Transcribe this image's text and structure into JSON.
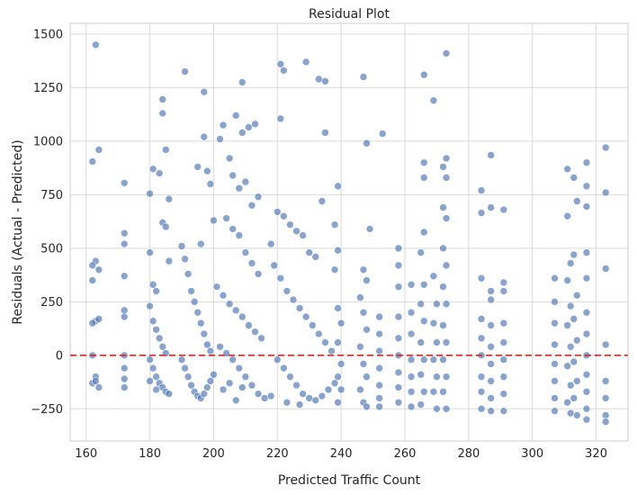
{
  "chart_data": {
    "type": "scatter",
    "title": "Residual Plot",
    "xlabel": "Predicted Traffic Count",
    "ylabel": "Residuals (Actual - Predicted)",
    "xlim": [
      155,
      330
    ],
    "ylim": [
      -400,
      1550
    ],
    "xticks": [
      "160",
      "180",
      "200",
      "220",
      "240",
      "260",
      "280",
      "300",
      "320"
    ],
    "yticks": [
      "−250",
      "0",
      "250",
      "500",
      "750",
      "1000",
      "1250",
      "1500"
    ],
    "xtick_values": [
      160,
      180,
      200,
      220,
      240,
      260,
      280,
      300,
      320
    ],
    "ytick_values": [
      -250,
      0,
      250,
      500,
      750,
      1000,
      1250,
      1500
    ],
    "grid": true,
    "reference_line": {
      "y": 0,
      "style": "dashed",
      "color": "#d62728"
    },
    "point_color": "#4c72b0",
    "series": [
      {
        "values": [
          [
            163,
            1450
          ],
          [
            162,
            905
          ],
          [
            164,
            960
          ],
          [
            163,
            440
          ],
          [
            162,
            420
          ],
          [
            164,
            400
          ],
          [
            162,
            350
          ],
          [
            163,
            160
          ],
          [
            162,
            150
          ],
          [
            164,
            170
          ],
          [
            162,
            0
          ],
          [
            163,
            -100
          ],
          [
            162,
            -130
          ],
          [
            164,
            -150
          ],
          [
            163,
            -120
          ],
          [
            172,
            805
          ],
          [
            172,
            570
          ],
          [
            172,
            520
          ],
          [
            172,
            370
          ],
          [
            172,
            210
          ],
          [
            172,
            180
          ],
          [
            172,
            0
          ],
          [
            172,
            -60
          ],
          [
            172,
            -110
          ],
          [
            172,
            -150
          ],
          [
            180,
            755
          ],
          [
            181,
            870
          ],
          [
            183,
            850
          ],
          [
            184,
            1130
          ],
          [
            184,
            1195
          ],
          [
            185,
            960
          ],
          [
            186,
            730
          ],
          [
            180,
            480
          ],
          [
            181,
            330
          ],
          [
            182,
            300
          ],
          [
            184,
            620
          ],
          [
            185,
            600
          ],
          [
            186,
            440
          ],
          [
            180,
            230
          ],
          [
            181,
            160
          ],
          [
            182,
            120
          ],
          [
            183,
            80
          ],
          [
            184,
            40
          ],
          [
            185,
            10
          ],
          [
            180,
            -20
          ],
          [
            181,
            -60
          ],
          [
            182,
            -100
          ],
          [
            183,
            -130
          ],
          [
            184,
            -150
          ],
          [
            185,
            -170
          ],
          [
            186,
            -180
          ],
          [
            180,
            -120
          ],
          [
            182,
            -160
          ],
          [
            191,
            1325
          ],
          [
            195,
            880
          ],
          [
            197,
            1230
          ],
          [
            197,
            1020
          ],
          [
            198,
            860
          ],
          [
            199,
            800
          ],
          [
            196,
            520
          ],
          [
            200,
            630
          ],
          [
            190,
            510
          ],
          [
            191,
            450
          ],
          [
            192,
            380
          ],
          [
            193,
            300
          ],
          [
            194,
            250
          ],
          [
            195,
            200
          ],
          [
            196,
            150
          ],
          [
            197,
            100
          ],
          [
            198,
            50
          ],
          [
            199,
            20
          ],
          [
            190,
            -20
          ],
          [
            191,
            -60
          ],
          [
            192,
            -100
          ],
          [
            193,
            -140
          ],
          [
            194,
            -170
          ],
          [
            195,
            -190
          ],
          [
            196,
            -200
          ],
          [
            197,
            -180
          ],
          [
            198,
            -150
          ],
          [
            199,
            -120
          ],
          [
            200,
            -90
          ],
          [
            202,
            1010
          ],
          [
            203,
            1075
          ],
          [
            205,
            920
          ],
          [
            206,
            840
          ],
          [
            207,
            1120
          ],
          [
            209,
            1275
          ],
          [
            209,
            1040
          ],
          [
            211,
            1065
          ],
          [
            213,
            1080
          ],
          [
            210,
            810
          ],
          [
            208,
            780
          ],
          [
            214,
            740
          ],
          [
            212,
            700
          ],
          [
            204,
            640
          ],
          [
            206,
            590
          ],
          [
            208,
            560
          ],
          [
            210,
            480
          ],
          [
            212,
            430
          ],
          [
            214,
            380
          ],
          [
            201,
            320
          ],
          [
            203,
            280
          ],
          [
            205,
            240
          ],
          [
            207,
            210
          ],
          [
            209,
            180
          ],
          [
            211,
            140
          ],
          [
            213,
            110
          ],
          [
            215,
            80
          ],
          [
            202,
            40
          ],
          [
            204,
            10
          ],
          [
            206,
            -20
          ],
          [
            208,
            -60
          ],
          [
            210,
            -100
          ],
          [
            212,
            -140
          ],
          [
            214,
            -180
          ],
          [
            216,
            -200
          ],
          [
            218,
            -190
          ],
          [
            203,
            -160
          ],
          [
            205,
            -130
          ],
          [
            207,
            -210
          ],
          [
            209,
            -150
          ],
          [
            221,
            1360
          ],
          [
            222,
            1330
          ],
          [
            221,
            1105
          ],
          [
            229,
            1370
          ],
          [
            233,
            1290
          ],
          [
            235,
            1280
          ],
          [
            235,
            1040
          ],
          [
            220,
            670
          ],
          [
            222,
            650
          ],
          [
            224,
            610
          ],
          [
            226,
            580
          ],
          [
            228,
            560
          ],
          [
            230,
            480
          ],
          [
            232,
            460
          ],
          [
            234,
            720
          ],
          [
            238,
            610
          ],
          [
            218,
            520
          ],
          [
            219,
            420
          ],
          [
            221,
            360
          ],
          [
            223,
            300
          ],
          [
            225,
            260
          ],
          [
            227,
            220
          ],
          [
            229,
            180
          ],
          [
            231,
            140
          ],
          [
            233,
            100
          ],
          [
            235,
            60
          ],
          [
            237,
            20
          ],
          [
            220,
            -20
          ],
          [
            222,
            -60
          ],
          [
            224,
            -100
          ],
          [
            226,
            -140
          ],
          [
            228,
            -180
          ],
          [
            230,
            -200
          ],
          [
            232,
            -210
          ],
          [
            234,
            -190
          ],
          [
            236,
            -160
          ],
          [
            238,
            -130
          ],
          [
            223,
            -220
          ],
          [
            227,
            -230
          ],
          [
            239,
            790
          ],
          [
            239,
            490
          ],
          [
            238,
            400
          ],
          [
            239,
            220
          ],
          [
            240,
            150
          ],
          [
            239,
            60
          ],
          [
            240,
            -40
          ],
          [
            239,
            -100
          ],
          [
            240,
            -160
          ],
          [
            239,
            -220
          ],
          [
            247,
            1300
          ],
          [
            248,
            990
          ],
          [
            253,
            1035
          ],
          [
            249,
            590
          ],
          [
            247,
            400
          ],
          [
            248,
            350
          ],
          [
            246,
            270
          ],
          [
            247,
            200
          ],
          [
            248,
            120
          ],
          [
            246,
            40
          ],
          [
            247,
            -40
          ],
          [
            248,
            -100
          ],
          [
            246,
            -160
          ],
          [
            247,
            -220
          ],
          [
            248,
            -240
          ],
          [
            252,
            180
          ],
          [
            252,
            100
          ],
          [
            252,
            20
          ],
          [
            252,
            -60
          ],
          [
            252,
            -140
          ],
          [
            252,
            -200
          ],
          [
            252,
            -240
          ],
          [
            258,
            500
          ],
          [
            258,
            420
          ],
          [
            258,
            320
          ],
          [
            258,
            180
          ],
          [
            258,
            80
          ],
          [
            258,
            0
          ],
          [
            258,
            -80
          ],
          [
            258,
            -150
          ],
          [
            258,
            -220
          ],
          [
            262,
            330
          ],
          [
            262,
            200
          ],
          [
            262,
            100
          ],
          [
            262,
            -20
          ],
          [
            262,
            -100
          ],
          [
            262,
            -170
          ],
          [
            262,
            -240
          ],
          [
            266,
            1310
          ],
          [
            266,
            900
          ],
          [
            266,
            830
          ],
          [
            266,
            575
          ],
          [
            265,
            480
          ],
          [
            266,
            330
          ],
          [
            265,
            240
          ],
          [
            266,
            160
          ],
          [
            265,
            60
          ],
          [
            266,
            -20
          ],
          [
            265,
            -90
          ],
          [
            266,
            -170
          ],
          [
            265,
            -230
          ],
          [
            269,
            1190
          ],
          [
            269,
            370
          ],
          [
            270,
            240
          ],
          [
            269,
            150
          ],
          [
            270,
            60
          ],
          [
            269,
            -20
          ],
          [
            270,
            -100
          ],
          [
            269,
            -170
          ],
          [
            270,
            -250
          ],
          [
            273,
            1410
          ],
          [
            273,
            920
          ],
          [
            272,
            880
          ],
          [
            273,
            830
          ],
          [
            272,
            690
          ],
          [
            273,
            640
          ],
          [
            272,
            500
          ],
          [
            273,
            420
          ],
          [
            272,
            320
          ],
          [
            273,
            240
          ],
          [
            272,
            140
          ],
          [
            273,
            60
          ],
          [
            272,
            -20
          ],
          [
            273,
            -100
          ],
          [
            272,
            -170
          ],
          [
            273,
            -250
          ],
          [
            284,
            770
          ],
          [
            284,
            665
          ],
          [
            284,
            360
          ],
          [
            284,
            170
          ],
          [
            284,
            80
          ],
          [
            284,
            0
          ],
          [
            284,
            -100
          ],
          [
            284,
            -170
          ],
          [
            284,
            -250
          ],
          [
            287,
            935
          ],
          [
            287,
            690
          ],
          [
            287,
            300
          ],
          [
            287,
            260
          ],
          [
            287,
            140
          ],
          [
            287,
            40
          ],
          [
            287,
            -40
          ],
          [
            287,
            -120
          ],
          [
            287,
            -200
          ],
          [
            287,
            -260
          ],
          [
            291,
            680
          ],
          [
            291,
            340
          ],
          [
            291,
            300
          ],
          [
            291,
            150
          ],
          [
            291,
            60
          ],
          [
            291,
            -20
          ],
          [
            291,
            -100
          ],
          [
            291,
            -180
          ],
          [
            291,
            -260
          ],
          [
            307,
            360
          ],
          [
            307,
            250
          ],
          [
            307,
            150
          ],
          [
            307,
            50
          ],
          [
            307,
            -40
          ],
          [
            307,
            -120
          ],
          [
            307,
            -200
          ],
          [
            307,
            -260
          ],
          [
            311,
            870
          ],
          [
            311,
            650
          ],
          [
            312,
            430
          ],
          [
            311,
            350
          ],
          [
            312,
            230
          ],
          [
            311,
            140
          ],
          [
            312,
            40
          ],
          [
            311,
            -50
          ],
          [
            312,
            -140
          ],
          [
            311,
            -220
          ],
          [
            312,
            -270
          ],
          [
            313,
            830
          ],
          [
            314,
            720
          ],
          [
            313,
            470
          ],
          [
            314,
            280
          ],
          [
            313,
            170
          ],
          [
            314,
            70
          ],
          [
            313,
            -30
          ],
          [
            314,
            -120
          ],
          [
            313,
            -200
          ],
          [
            314,
            -280
          ],
          [
            317,
            900
          ],
          [
            317,
            790
          ],
          [
            317,
            695
          ],
          [
            317,
            480
          ],
          [
            317,
            360
          ],
          [
            317,
            200
          ],
          [
            317,
            100
          ],
          [
            317,
            0
          ],
          [
            317,
            -90
          ],
          [
            317,
            -170
          ],
          [
            317,
            -250
          ],
          [
            317,
            -300
          ],
          [
            323,
            970
          ],
          [
            323,
            760
          ],
          [
            323,
            405
          ],
          [
            323,
            50
          ],
          [
            323,
            -120
          ],
          [
            323,
            -200
          ],
          [
            323,
            -280
          ],
          [
            323,
            -310
          ]
        ]
      }
    ]
  }
}
